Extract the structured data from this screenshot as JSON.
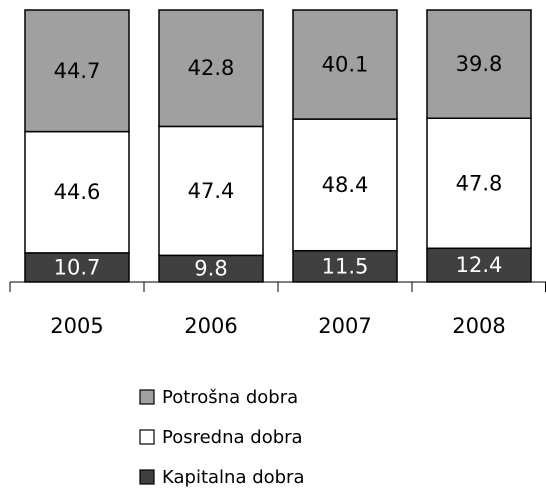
{
  "chart_data": {
    "type": "stacked_bar",
    "categories": [
      "2005",
      "2006",
      "2007",
      "2008"
    ],
    "series": [
      {
        "name": "Kapitalna dobra",
        "color": "#404040",
        "values": [
          10.7,
          9.8,
          11.5,
          12.4
        ]
      },
      {
        "name": "Posredna dobra",
        "color": "#ffffff",
        "values": [
          44.6,
          47.4,
          48.4,
          47.8
        ]
      },
      {
        "name": "Potrošna dobra",
        "color": "#a0a0a0",
        "values": [
          44.7,
          42.8,
          40.1,
          39.8
        ]
      }
    ]
  }
}
